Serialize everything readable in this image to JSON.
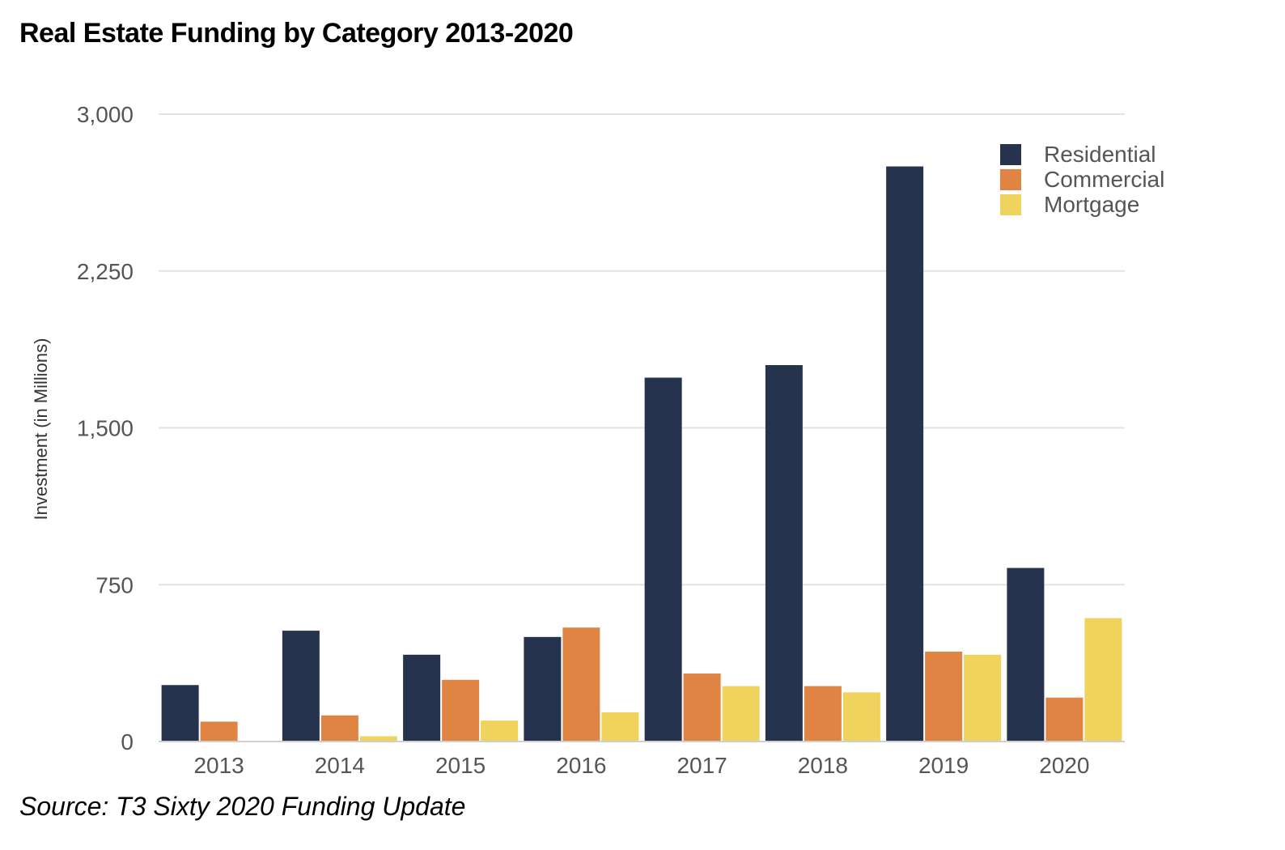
{
  "title": "Real Estate Funding by Category 2013-2020",
  "source": "Source: T3 Sixty 2020 Funding Update",
  "chart_data": {
    "type": "bar",
    "ylabel": "Investment (in Millions)",
    "xlabel": "",
    "ylim": [
      0,
      3000
    ],
    "yticks": [
      0,
      750,
      1500,
      2250,
      3000
    ],
    "ytick_labels": [
      "0",
      "750",
      "1,500",
      "2,250",
      "3,000"
    ],
    "grid": true,
    "legend_position": "top-right",
    "categories": [
      "2013",
      "2014",
      "2015",
      "2016",
      "2017",
      "2018",
      "2019",
      "2020"
    ],
    "series": [
      {
        "name": "Residential",
        "color": "#26334e",
        "values": [
          270,
          530,
          415,
          500,
          1740,
          1800,
          2750,
          830
        ]
      },
      {
        "name": "Commercial",
        "color": "#e08444",
        "values": [
          95,
          125,
          295,
          545,
          325,
          265,
          430,
          210
        ]
      },
      {
        "name": "Mortgage",
        "color": "#f0d35c",
        "values": [
          0,
          25,
          100,
          140,
          265,
          235,
          415,
          590
        ]
      }
    ]
  }
}
